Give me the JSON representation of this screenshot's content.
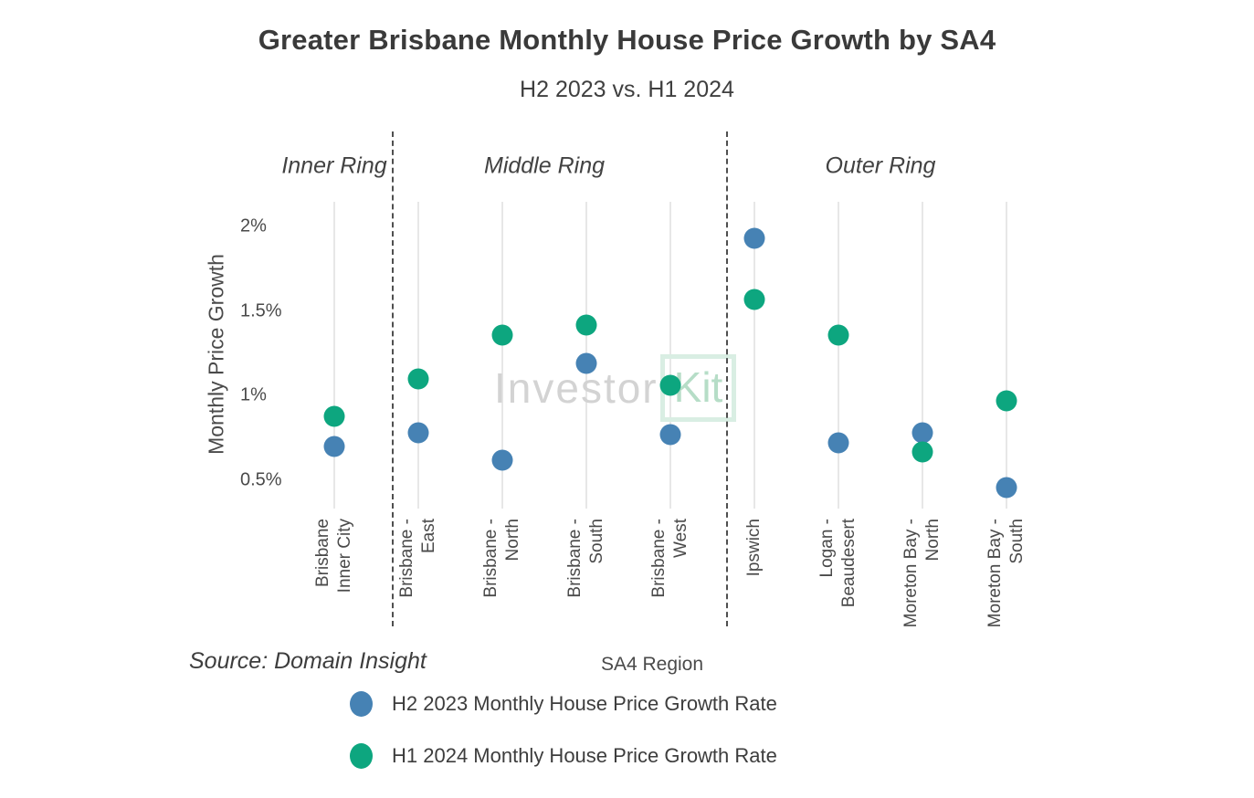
{
  "header": {
    "title": "Greater Brisbane Monthly House Price Growth by SA4",
    "subtitle": "H2 2023 vs. H1 2024"
  },
  "watermark": {
    "part1": "Investor",
    "part2": "Kit",
    "part1_color": "#d3d3d3",
    "part2_color": "#b6ddc7",
    "part2_border_color": "#d9eee3"
  },
  "source_note": "Source: Domain Insight",
  "chart_data": {
    "type": "scatter",
    "title": "Greater Brisbane Monthly House Price Growth by SA4",
    "subtitle": "H2 2023 vs. H1 2024",
    "xlabel": "SA4 Region",
    "ylabel": "Monthly Price Growth",
    "ylim": [
      0.33,
      2.15
    ],
    "grid": "vertical category gridlines only",
    "legend_position": "bottom",
    "y_ticks": [
      {
        "label": "2%",
        "value": 2.0
      },
      {
        "label": "1.5%",
        "value": 1.5
      },
      {
        "label": "1%",
        "value": 1.0
      },
      {
        "label": "0.5%",
        "value": 0.5
      }
    ],
    "rings": [
      {
        "label": "Inner Ring",
        "from": 0,
        "to": 0
      },
      {
        "label": "Middle Ring",
        "from": 1,
        "to": 4
      },
      {
        "label": "Outer Ring",
        "from": 5,
        "to": 8
      }
    ],
    "categories": [
      {
        "label_lines": [
          "Brisbane",
          "Inner City"
        ]
      },
      {
        "label_lines": [
          "Brisbane -",
          "East"
        ]
      },
      {
        "label_lines": [
          "Brisbane -",
          "North"
        ]
      },
      {
        "label_lines": [
          "Brisbane -",
          "South"
        ]
      },
      {
        "label_lines": [
          "Brisbane -",
          "West"
        ]
      },
      {
        "label_lines": [
          "Ipswich"
        ]
      },
      {
        "label_lines": [
          "Logan -",
          "Beaudesert"
        ]
      },
      {
        "label_lines": [
          "Moreton Bay -",
          "North"
        ]
      },
      {
        "label_lines": [
          "Moreton Bay -",
          "South"
        ]
      }
    ],
    "series": [
      {
        "name": "H2 2023 Monthly House Price Growth Rate",
        "color": "#4682b4",
        "values_pct": [
          0.7,
          0.78,
          0.62,
          1.19,
          0.77,
          1.93,
          0.72,
          0.78,
          0.46
        ]
      },
      {
        "name": "H1 2024 Monthly House Price Growth Rate",
        "color": "#0da67f",
        "values_pct": [
          0.88,
          1.1,
          1.36,
          1.42,
          1.06,
          1.57,
          1.36,
          0.67,
          0.97
        ]
      }
    ]
  }
}
